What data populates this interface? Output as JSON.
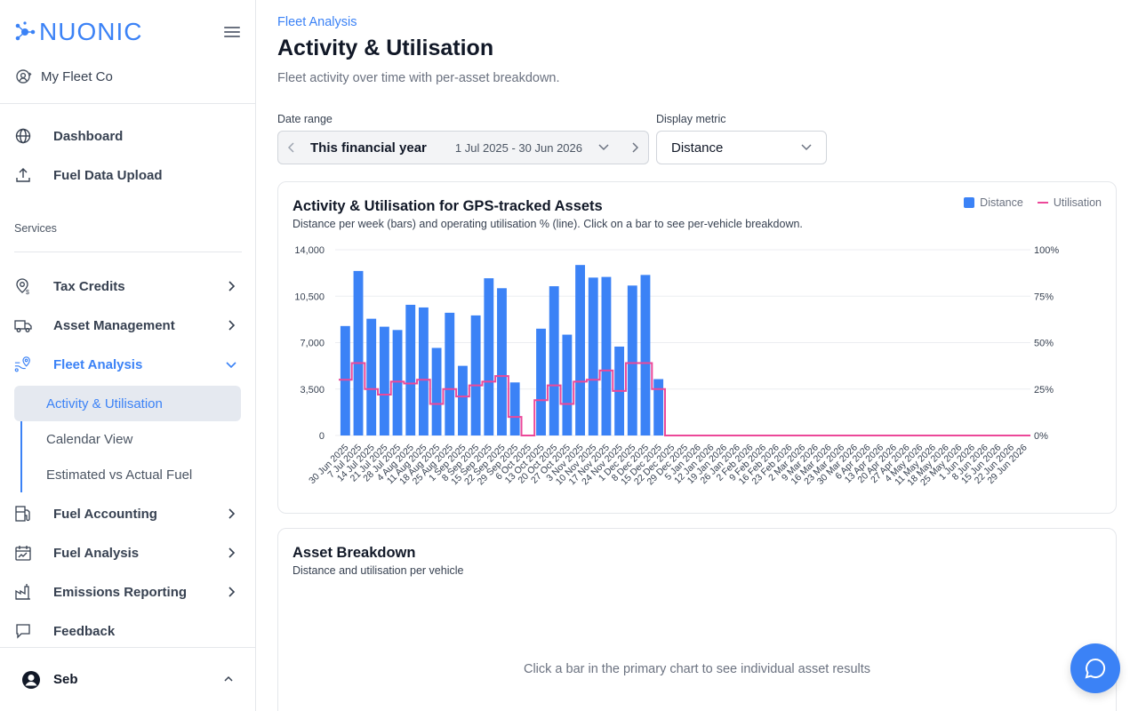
{
  "brand": {
    "name": "NUONIC",
    "color": "#3b82f6"
  },
  "org": {
    "name": "My Fleet Co",
    "icon": "org-switch-icon"
  },
  "nav": {
    "top": [
      {
        "label": "Dashboard",
        "icon": "globe-icon"
      },
      {
        "label": "Fuel Data Upload",
        "icon": "upload-icon"
      }
    ],
    "services_label": "Services",
    "services": [
      {
        "label": "Tax Credits",
        "icon": "tax-credit-icon"
      },
      {
        "label": "Asset Management",
        "icon": "truck-icon"
      },
      {
        "label": "Fleet Analysis",
        "icon": "route-pin-icon",
        "expanded": true,
        "active": true
      },
      {
        "label": "Fuel Accounting",
        "icon": "fuel-pump-icon"
      },
      {
        "label": "Fuel Analysis",
        "icon": "calendar-chart-icon"
      },
      {
        "label": "Emissions Reporting",
        "icon": "factory-icon"
      },
      {
        "label": "Feedback",
        "icon": "message-icon"
      }
    ],
    "fleet_sub": [
      {
        "label": "Activity & Utilisation",
        "active": true
      },
      {
        "label": "Calendar View"
      },
      {
        "label": "Estimated vs Actual Fuel"
      }
    ]
  },
  "user": {
    "name": "Seb"
  },
  "header": {
    "eyebrow": "Fleet Analysis",
    "title": "Activity & Utilisation",
    "subtitle": "Fleet activity over time with per-asset breakdown."
  },
  "filters": {
    "date_range_label": "Date range",
    "date_range_preset": "This financial year",
    "date_range_dates": "1 Jul 2025 - 30 Jun 2026",
    "metric_label": "Display metric",
    "metric_value": "Distance"
  },
  "activity_card": {
    "title": "Activity & Utilisation for GPS-tracked Assets",
    "subtitle": "Distance per week (bars) and operating utilisation % (line). Click on a bar to see per-vehicle breakdown.",
    "legend": {
      "bar": "Distance",
      "line": "Utilisation"
    }
  },
  "breakdown_card": {
    "title": "Asset Breakdown",
    "subtitle": "Distance and utilisation per vehicle",
    "empty_message": "Click a bar in the primary chart to see individual asset results"
  },
  "colors": {
    "bar": "#3b82f6",
    "line": "#ec4899",
    "grid": "#eceef1"
  },
  "chart_data": {
    "type": "bar",
    "categories": [
      "30 Jun 2025",
      "7 Jul 2025",
      "14 Jul 2025",
      "21 Jul 2025",
      "28 Jul 2025",
      "4 Aug 2025",
      "11 Aug 2025",
      "18 Aug 2025",
      "25 Aug 2025",
      "1 Sep 2025",
      "8 Sep 2025",
      "15 Sep 2025",
      "22 Sep 2025",
      "29 Sep 2025",
      "6 Oct 2025",
      "13 Oct 2025",
      "20 Oct 2025",
      "27 Oct 2025",
      "3 Nov 2025",
      "10 Nov 2025",
      "17 Nov 2025",
      "24 Nov 2025",
      "1 Dec 2025",
      "8 Dec 2025",
      "15 Dec 2025",
      "22 Dec 2025",
      "29 Dec 2025",
      "5 Jan 2026",
      "12 Jan 2026",
      "19 Jan 2026",
      "26 Jan 2026",
      "2 Feb 2026",
      "9 Feb 2026",
      "16 Feb 2026",
      "23 Feb 2026",
      "2 Mar 2026",
      "9 Mar 2026",
      "16 Mar 2026",
      "23 Mar 2026",
      "30 Mar 2026",
      "6 Apr 2026",
      "13 Apr 2026",
      "20 Apr 2026",
      "27 Apr 2026",
      "4 May 2026",
      "11 May 2026",
      "18 May 2026",
      "25 May 2026",
      "1 Jun 2026",
      "8 Jun 2026",
      "15 Jun 2026",
      "22 Jun 2026",
      "29 Jun 2026"
    ],
    "series": [
      {
        "name": "Distance",
        "type": "bar",
        "axis": "left",
        "values": [
          8250,
          12400,
          8800,
          8200,
          7950,
          9850,
          9650,
          6600,
          9250,
          5250,
          9050,
          11850,
          11100,
          4000,
          0,
          8050,
          11250,
          7600,
          12850,
          11900,
          11950,
          6700,
          11300,
          12100,
          4250,
          0,
          0,
          0,
          0,
          0,
          0,
          0,
          0,
          0,
          0,
          0,
          0,
          0,
          0,
          0,
          0,
          0,
          0,
          0,
          0,
          0,
          0,
          0,
          0,
          0,
          0,
          0,
          0
        ]
      },
      {
        "name": "Utilisation",
        "type": "line",
        "axis": "right",
        "step": true,
        "values": [
          30,
          39,
          25,
          22,
          29,
          28,
          30,
          17,
          25,
          21,
          27,
          29,
          32,
          10,
          0,
          19,
          27,
          17,
          29,
          30,
          35,
          24,
          39,
          39,
          25,
          0,
          0,
          0,
          0,
          0,
          0,
          0,
          0,
          0,
          0,
          0,
          0,
          0,
          0,
          0,
          0,
          0,
          0,
          0,
          0,
          0,
          0,
          0,
          0,
          0,
          0,
          0,
          0
        ]
      }
    ],
    "ylim": [
      0,
      14000
    ],
    "yticks": [
      "0",
      "3,500",
      "7,000",
      "10,500",
      "14,000"
    ],
    "y2lim": [
      0,
      100
    ],
    "y2ticks": [
      "0%",
      "25%",
      "50%",
      "75%",
      "100%"
    ],
    "grid": true,
    "legend_position": "top-right"
  }
}
